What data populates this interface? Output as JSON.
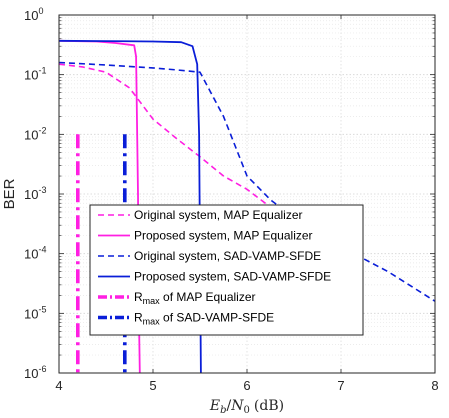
{
  "chart_data": {
    "type": "line",
    "title": "",
    "xlabel": "E_b/N_0 (dB)",
    "xlabel_parts": {
      "e": "E",
      "e_sub": "b",
      "slash": "/",
      "n": "N",
      "n_sub": "0",
      "unit": "(dB)"
    },
    "ylabel": "BER",
    "xlim": [
      4,
      8
    ],
    "ylim_exponents": [
      -6,
      0
    ],
    "yscale": "log",
    "grid": true,
    "legend_position": "lower-center",
    "x_ticks": [
      "4",
      "5",
      "6",
      "7",
      "8"
    ],
    "y_ticks": [
      {
        "base": "10",
        "exp": "-6"
      },
      {
        "base": "10",
        "exp": "-5"
      },
      {
        "base": "10",
        "exp": "-4"
      },
      {
        "base": "10",
        "exp": "-3"
      },
      {
        "base": "10",
        "exp": "-2"
      },
      {
        "base": "10",
        "exp": "-1"
      },
      {
        "base": "10",
        "exp": "0"
      }
    ],
    "series": [
      {
        "name": "Original system, MAP Equalizer",
        "color": "#ff1fe2",
        "dash": "dashed",
        "width": 1.6,
        "x": [
          4.0,
          4.25,
          4.5,
          4.75,
          5.0,
          5.25,
          5.5,
          5.75,
          6.0,
          6.25
        ],
        "y": [
          0.15,
          0.135,
          0.11,
          0.06,
          0.018,
          0.0085,
          0.0042,
          0.002,
          0.0012,
          0.0006
        ]
      },
      {
        "name": "Proposed system, MAP Equalizer",
        "color": "#ff1fe2",
        "dash": "solid",
        "width": 1.8,
        "x": [
          4.0,
          4.4,
          4.6,
          4.8,
          4.82,
          4.84,
          4.85,
          4.86
        ],
        "y": [
          0.37,
          0.36,
          0.34,
          0.31,
          0.2,
          0.001,
          1e-05,
          1e-06
        ]
      },
      {
        "name": "Original system, SAD-VAMP-SFDE",
        "color": "#0a1ed8",
        "dash": "dashed",
        "width": 1.6,
        "x": [
          4.0,
          4.5,
          5.0,
          5.25,
          5.5,
          5.75,
          6.0,
          6.25,
          6.5,
          7.0,
          7.5,
          8.0
        ],
        "y": [
          0.16,
          0.145,
          0.13,
          0.12,
          0.11,
          0.02,
          0.002,
          0.0008,
          0.0004,
          0.00013,
          5e-05,
          1.6e-05
        ]
      },
      {
        "name": "Proposed system, SAD-VAMP-SFDE",
        "color": "#0a1ed8",
        "dash": "solid",
        "width": 1.8,
        "x": [
          4.0,
          4.5,
          5.0,
          5.3,
          5.42,
          5.47,
          5.49,
          5.5,
          5.51
        ],
        "y": [
          0.37,
          0.365,
          0.36,
          0.35,
          0.3,
          0.15,
          0.01,
          0.0001,
          1e-06
        ]
      },
      {
        "name": "R_max of MAP Equalizer",
        "name_parts": {
          "r": "R",
          "sub": "max",
          "rest": " of MAP Equalizer"
        },
        "color": "#ff1fe2",
        "dash": "dashdot",
        "width": 3.6,
        "x": [
          4.2,
          4.2
        ],
        "y": [
          0.01,
          1e-06
        ]
      },
      {
        "name": "R_max of SAD-VAMP-SFDE",
        "name_parts": {
          "r": "R",
          "sub": "max",
          "rest": " of SAD-VAMP-SFDE"
        },
        "color": "#0a1ed8",
        "dash": "dashdot",
        "width": 3.6,
        "x": [
          4.7,
          4.7
        ],
        "y": [
          0.01,
          1e-06
        ]
      }
    ]
  }
}
